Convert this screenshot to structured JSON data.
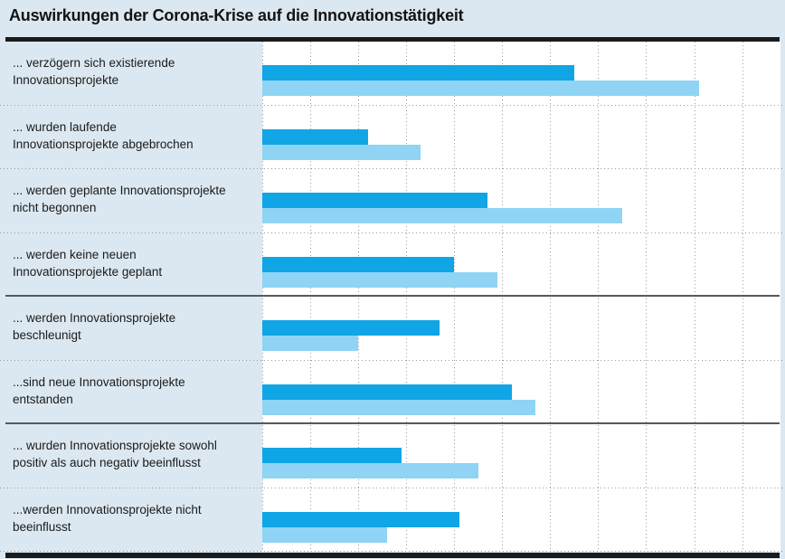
{
  "title": "Auswirkungen der Corona-Krise auf die Innovationstätigkeit",
  "colors": {
    "background": "#dce8f1",
    "plot_background": "#ffffff",
    "bar_dark": "#10a5e5",
    "bar_light": "#8fd4f4",
    "gridline": "#9b9b9b",
    "separator_solid": "#595959",
    "rule": "#1b1b1b",
    "text": "#1a1a1a"
  },
  "chart_data": {
    "type": "bar",
    "orientation": "horizontal",
    "title": "Auswirkungen der Corona-Krise auf die Innovationstätigkeit",
    "categories": [
      "... verzögern sich existierende Innovationsprojekte",
      "... wurden laufende Innovationsprojekte abgebrochen",
      "... werden geplante Innovationsprojekte nicht begonnen",
      "... werden keine neuen Innovationsprojekte geplant",
      "... werden Innovationsprojekte beschleunigt",
      "... sind neue Innovationsprojekte entstanden",
      "... wurden Innovationsprojekte sowohl positiv als auch negativ beeinflusst",
      "... werden Innovationsprojekte nicht beeinflusst"
    ],
    "category_lines": [
      [
        "... verzögern sich existierende",
        "Innovationsprojekte"
      ],
      [
        "... wurden laufende",
        "Innovationsprojekte abgebrochen"
      ],
      [
        "... werden geplante Innovationsprojekte",
        "nicht begonnen"
      ],
      [
        "... werden keine neuen",
        "Innovationsprojekte geplant"
      ],
      [
        "... werden Innovationsprojekte",
        "beschleunigt"
      ],
      [
        "...sind neue Innovationsprojekte",
        "entstanden"
      ],
      [
        "... wurden Innovationsprojekte sowohl",
        "positiv als auch negativ beeinflusst"
      ],
      [
        "...werden Innovationsprojekte nicht",
        "beeinflusst"
      ]
    ],
    "series": [
      {
        "name": "dark_blue",
        "color": "#10a5e5",
        "values": [
          32.5,
          11,
          23.5,
          20,
          18.5,
          26,
          14.5,
          20.5
        ]
      },
      {
        "name": "light_blue",
        "color": "#8fd4f4",
        "values": [
          45.5,
          16.5,
          37.5,
          24.5,
          10,
          28.5,
          22.5,
          13
        ]
      }
    ],
    "xlim": [
      0,
      54
    ],
    "grid_step": 5,
    "grid": "dotted-vertical",
    "axis_tick_labels_visible": false,
    "legend_visible": false,
    "group_separators": [
      "dotted",
      "dotted",
      "dotted",
      "solid",
      "dotted",
      "solid",
      "dotted",
      "dotted"
    ]
  }
}
